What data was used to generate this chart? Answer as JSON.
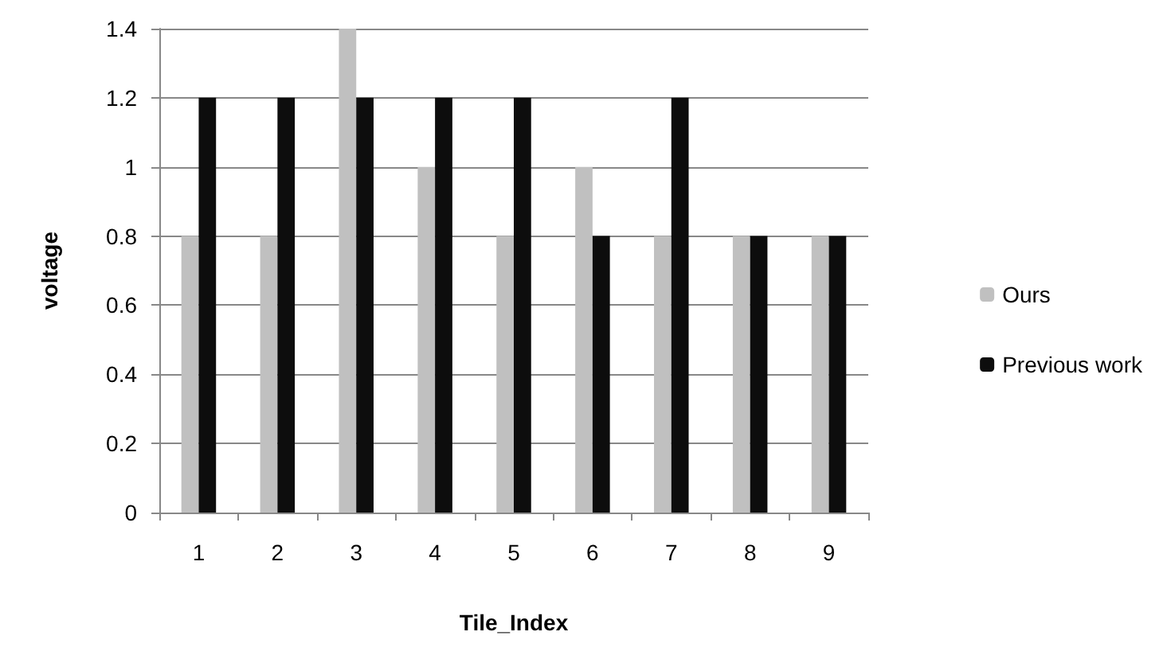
{
  "chart_data": {
    "type": "bar",
    "xlabel": "Tile_Index",
    "ylabel": "voltage",
    "categories": [
      "1",
      "2",
      "3",
      "4",
      "5",
      "6",
      "7",
      "8",
      "9"
    ],
    "series": [
      {
        "name": "Ours",
        "color": "#c0c0c0",
        "values": [
          0.8,
          0.8,
          1.4,
          1.0,
          0.8,
          1.0,
          0.8,
          0.8,
          0.8
        ]
      },
      {
        "name": "Previous work",
        "color": "#0d0d0d",
        "values": [
          1.2,
          1.2,
          1.2,
          1.2,
          1.2,
          0.8,
          1.2,
          0.8,
          0.8
        ]
      }
    ],
    "ylim": [
      0,
      1.4
    ],
    "yticks": [
      0,
      0.2,
      0.4,
      0.6,
      0.8,
      1,
      1.2,
      1.4
    ],
    "grid": "y",
    "legend": "right"
  }
}
